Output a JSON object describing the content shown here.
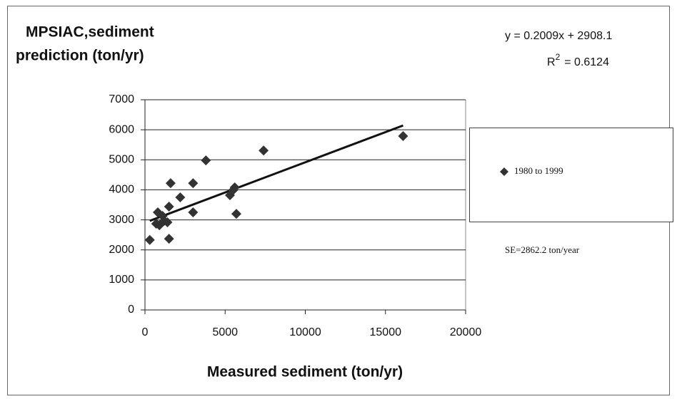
{
  "chart_data": {
    "type": "scatter",
    "title_lines": [
      "MPSIAC,sediment",
      "prediction (ton/yr)"
    ],
    "x_label": "Measured sediment (ton/yr)",
    "equation": "y = 0.2009x + 2908.1",
    "r2_label": "R",
    "r2_exponent": "2",
    "r2_value": "= 0.6124",
    "note": "SE=2862.2 ton/year",
    "legend_position": "right",
    "grid": true,
    "series": [
      {
        "name": "1980 to 1999",
        "color": "#333333",
        "x": [
          300,
          700,
          800,
          900,
          1100,
          1200,
          1400,
          1500,
          1500,
          1600,
          2200,
          3000,
          3000,
          3800,
          5300,
          5500,
          5600,
          5700,
          7400,
          16100
        ],
        "values": [
          2330,
          2870,
          3250,
          2820,
          3130,
          2970,
          2920,
          2370,
          3440,
          4220,
          3750,
          4220,
          3250,
          4980,
          3820,
          3990,
          4080,
          3200,
          5310,
          5790
        ]
      }
    ],
    "trendline": {
      "color": "#111111",
      "x": [
        300,
        16100
      ],
      "values": [
        2968,
        6143
      ]
    },
    "xlim": [
      0,
      20000
    ],
    "xticks": [
      0,
      5000,
      10000,
      15000,
      20000
    ],
    "ylim": [
      0,
      7000
    ],
    "yticks": [
      0,
      1000,
      2000,
      3000,
      4000,
      5000,
      6000,
      7000
    ]
  }
}
